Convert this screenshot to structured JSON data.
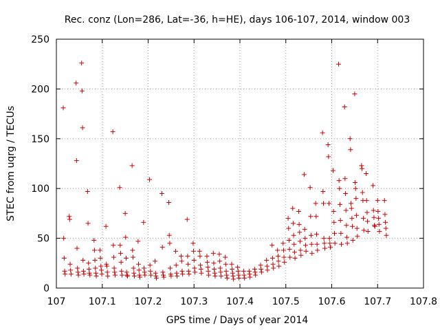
{
  "chart_data": {
    "type": "scatter",
    "title": "Rec. conz (Lon=286, Lat=-36, h=HE), days 106-107, 2014, window 003",
    "xlabel": "GPS time / Days of year 2014",
    "ylabel": "STEC from uqrg / TECUs",
    "xlim": [
      107,
      107.8
    ],
    "ylim": [
      0,
      250
    ],
    "xticks": [
      "107",
      "107.1",
      "107.2",
      "107.3",
      "107.4",
      "107.5",
      "107.6",
      "107.7",
      "107.8"
    ],
    "yticks": [
      "0",
      "50",
      "100",
      "150",
      "200",
      "250"
    ],
    "grid": true,
    "marker": "plus",
    "color": "#cc0000",
    "series": [
      {
        "points": [
          [
            107.015,
            181
          ],
          [
            107.016,
            50
          ],
          [
            107.017,
            30
          ],
          [
            107.018,
            17
          ],
          [
            107.019,
            14
          ],
          [
            107.028,
            72
          ],
          [
            107.029,
            69
          ],
          [
            107.03,
            24
          ],
          [
            107.031,
            18
          ],
          [
            107.032,
            14
          ],
          [
            107.043,
            206
          ],
          [
            107.044,
            128
          ],
          [
            107.045,
            40
          ],
          [
            107.046,
            20
          ],
          [
            107.047,
            16
          ],
          [
            107.048,
            13
          ],
          [
            107.055,
            226
          ],
          [
            107.056,
            198
          ],
          [
            107.057,
            161
          ],
          [
            107.058,
            28
          ],
          [
            107.059,
            17
          ],
          [
            107.06,
            14
          ],
          [
            107.068,
            97
          ],
          [
            107.069,
            65
          ],
          [
            107.07,
            25
          ],
          [
            107.071,
            19
          ],
          [
            107.072,
            15
          ],
          [
            107.073,
            13
          ],
          [
            107.082,
            48
          ],
          [
            107.083,
            38
          ],
          [
            107.084,
            28
          ],
          [
            107.085,
            20
          ],
          [
            107.086,
            15
          ],
          [
            107.087,
            12
          ],
          [
            107.095,
            38
          ],
          [
            107.096,
            30
          ],
          [
            107.097,
            22
          ],
          [
            107.098,
            18
          ],
          [
            107.099,
            14
          ],
          [
            107.108,
            62
          ],
          [
            107.109,
            24
          ],
          [
            107.11,
            22
          ],
          [
            107.111,
            16
          ],
          [
            107.112,
            12
          ],
          [
            107.123,
            157
          ],
          [
            107.124,
            43
          ],
          [
            107.125,
            31
          ],
          [
            107.126,
            20
          ],
          [
            107.127,
            16
          ],
          [
            107.128,
            13
          ],
          [
            107.138,
            101
          ],
          [
            107.139,
            43
          ],
          [
            107.14,
            35
          ],
          [
            107.141,
            26
          ],
          [
            107.142,
            17
          ],
          [
            107.143,
            13
          ],
          [
            107.15,
            75
          ],
          [
            107.151,
            51
          ],
          [
            107.152,
            30
          ],
          [
            107.153,
            16
          ],
          [
            107.154,
            13
          ],
          [
            107.155,
            12
          ],
          [
            107.165,
            123
          ],
          [
            107.166,
            38
          ],
          [
            107.167,
            31
          ],
          [
            107.168,
            20
          ],
          [
            107.169,
            15
          ],
          [
            107.17,
            12
          ],
          [
            107.178,
            47
          ],
          [
            107.179,
            24
          ],
          [
            107.18,
            18
          ],
          [
            107.181,
            13
          ],
          [
            107.182,
            11
          ],
          [
            107.19,
            66
          ],
          [
            107.191,
            20
          ],
          [
            107.192,
            16
          ],
          [
            107.193,
            13
          ],
          [
            107.203,
            109
          ],
          [
            107.204,
            23
          ],
          [
            107.205,
            17
          ],
          [
            107.206,
            13
          ],
          [
            107.215,
            27
          ],
          [
            107.216,
            15
          ],
          [
            107.217,
            12
          ],
          [
            107.218,
            10
          ],
          [
            107.23,
            95
          ],
          [
            107.231,
            41
          ],
          [
            107.232,
            16
          ],
          [
            107.233,
            13
          ],
          [
            107.234,
            11
          ],
          [
            107.245,
            86
          ],
          [
            107.246,
            53
          ],
          [
            107.247,
            45
          ],
          [
            107.248,
            20
          ],
          [
            107.249,
            14
          ],
          [
            107.25,
            12
          ],
          [
            107.26,
            37
          ],
          [
            107.261,
            23
          ],
          [
            107.262,
            15
          ],
          [
            107.263,
            12
          ],
          [
            107.272,
            32
          ],
          [
            107.273,
            27
          ],
          [
            107.274,
            17
          ],
          [
            107.275,
            14
          ],
          [
            107.285,
            69
          ],
          [
            107.286,
            32
          ],
          [
            107.287,
            24
          ],
          [
            107.288,
            17
          ],
          [
            107.289,
            14
          ],
          [
            107.298,
            45
          ],
          [
            107.299,
            37
          ],
          [
            107.3,
            28
          ],
          [
            107.301,
            20
          ],
          [
            107.302,
            16
          ],
          [
            107.312,
            37
          ],
          [
            107.313,
            32
          ],
          [
            107.314,
            23
          ],
          [
            107.315,
            19
          ],
          [
            107.316,
            15
          ],
          [
            107.328,
            32
          ],
          [
            107.329,
            26
          ],
          [
            107.33,
            21
          ],
          [
            107.331,
            17
          ],
          [
            107.332,
            13
          ],
          [
            107.342,
            35
          ],
          [
            107.343,
            25
          ],
          [
            107.344,
            19
          ],
          [
            107.345,
            15
          ],
          [
            107.346,
            12
          ],
          [
            107.355,
            34
          ],
          [
            107.356,
            27
          ],
          [
            107.357,
            20
          ],
          [
            107.358,
            16
          ],
          [
            107.359,
            12
          ],
          [
            107.368,
            31
          ],
          [
            107.369,
            24
          ],
          [
            107.37,
            17
          ],
          [
            107.371,
            13
          ],
          [
            107.372,
            10
          ],
          [
            107.382,
            24
          ],
          [
            107.383,
            19
          ],
          [
            107.384,
            15
          ],
          [
            107.385,
            12
          ],
          [
            107.386,
            9
          ],
          [
            107.395,
            21
          ],
          [
            107.396,
            17
          ],
          [
            107.397,
            13
          ],
          [
            107.398,
            10
          ],
          [
            107.408,
            17
          ],
          [
            107.409,
            13
          ],
          [
            107.41,
            10
          ],
          [
            107.42,
            17
          ],
          [
            107.421,
            14
          ],
          [
            107.422,
            11
          ],
          [
            107.432,
            19
          ],
          [
            107.433,
            16
          ],
          [
            107.434,
            13
          ],
          [
            107.445,
            23
          ],
          [
            107.446,
            19
          ],
          [
            107.447,
            16
          ],
          [
            107.458,
            28
          ],
          [
            107.459,
            22
          ],
          [
            107.46,
            18
          ],
          [
            107.47,
            43
          ],
          [
            107.471,
            30
          ],
          [
            107.472,
            24
          ],
          [
            107.473,
            20
          ],
          [
            107.482,
            38
          ],
          [
            107.483,
            32
          ],
          [
            107.484,
            27
          ],
          [
            107.485,
            22
          ],
          [
            107.494,
            45
          ],
          [
            107.495,
            38
          ],
          [
            107.496,
            31
          ],
          [
            107.497,
            26
          ],
          [
            107.505,
            70
          ],
          [
            107.506,
            60
          ],
          [
            107.507,
            48
          ],
          [
            107.508,
            39
          ],
          [
            107.509,
            31
          ],
          [
            107.515,
            80
          ],
          [
            107.516,
            65
          ],
          [
            107.517,
            53
          ],
          [
            107.518,
            44
          ],
          [
            107.519,
            36
          ],
          [
            107.52,
            30
          ],
          [
            107.528,
            77
          ],
          [
            107.529,
            64
          ],
          [
            107.53,
            56
          ],
          [
            107.531,
            47
          ],
          [
            107.532,
            38
          ],
          [
            107.533,
            33
          ],
          [
            107.54,
            114
          ],
          [
            107.541,
            59
          ],
          [
            107.542,
            50
          ],
          [
            107.543,
            43
          ],
          [
            107.544,
            37
          ],
          [
            107.553,
            101
          ],
          [
            107.554,
            72
          ],
          [
            107.555,
            53
          ],
          [
            107.556,
            44
          ],
          [
            107.557,
            35
          ],
          [
            107.565,
            85
          ],
          [
            107.566,
            72
          ],
          [
            107.567,
            54
          ],
          [
            107.568,
            44
          ],
          [
            107.569,
            38
          ],
          [
            107.58,
            156
          ],
          [
            107.581,
            97
          ],
          [
            107.582,
            85
          ],
          [
            107.583,
            50
          ],
          [
            107.584,
            45
          ],
          [
            107.585,
            40
          ],
          [
            107.592,
            144
          ],
          [
            107.593,
            132
          ],
          [
            107.594,
            85
          ],
          [
            107.595,
            50
          ],
          [
            107.596,
            45
          ],
          [
            107.597,
            41
          ],
          [
            107.603,
            118
          ],
          [
            107.604,
            77
          ],
          [
            107.605,
            66
          ],
          [
            107.606,
            55
          ],
          [
            107.607,
            45
          ],
          [
            107.615,
            225
          ],
          [
            107.616,
            108
          ],
          [
            107.617,
            100
          ],
          [
            107.618,
            84
          ],
          [
            107.619,
            68
          ],
          [
            107.62,
            55
          ],
          [
            107.621,
            44
          ],
          [
            107.628,
            182
          ],
          [
            107.629,
            110
          ],
          [
            107.63,
            95
          ],
          [
            107.631,
            78
          ],
          [
            107.632,
            63
          ],
          [
            107.633,
            51
          ],
          [
            107.634,
            45
          ],
          [
            107.64,
            150
          ],
          [
            107.641,
            139
          ],
          [
            107.642,
            85
          ],
          [
            107.643,
            80
          ],
          [
            107.644,
            70
          ],
          [
            107.645,
            62
          ],
          [
            107.646,
            48
          ],
          [
            107.65,
            195
          ],
          [
            107.651,
            106
          ],
          [
            107.652,
            100
          ],
          [
            107.653,
            90
          ],
          [
            107.654,
            73
          ],
          [
            107.655,
            60
          ],
          [
            107.656,
            52
          ],
          [
            107.665,
            123
          ],
          [
            107.666,
            120
          ],
          [
            107.667,
            96
          ],
          [
            107.668,
            88
          ],
          [
            107.669,
            70
          ],
          [
            107.67,
            58
          ],
          [
            107.675,
            115
          ],
          [
            107.676,
            88
          ],
          [
            107.677,
            76
          ],
          [
            107.678,
            67
          ],
          [
            107.679,
            57
          ],
          [
            107.69,
            103
          ],
          [
            107.691,
            78
          ],
          [
            107.692,
            71
          ],
          [
            107.693,
            63
          ],
          [
            107.694,
            62
          ],
          [
            107.7,
            88
          ],
          [
            107.701,
            77
          ],
          [
            107.702,
            70
          ],
          [
            107.703,
            64
          ],
          [
            107.704,
            57
          ],
          [
            107.715,
            88
          ],
          [
            107.716,
            74
          ],
          [
            107.717,
            66
          ],
          [
            107.718,
            60
          ],
          [
            107.719,
            53
          ]
        ]
      }
    ]
  }
}
